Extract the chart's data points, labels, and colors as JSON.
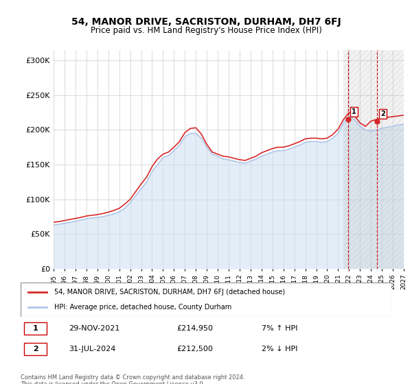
{
  "title": "54, MANOR DRIVE, SACRISTON, DURHAM, DH7 6FJ",
  "subtitle": "Price paid vs. HM Land Registry's House Price Index (HPI)",
  "ylabel_ticks": [
    "£0",
    "£50K",
    "£100K",
    "£150K",
    "£200K",
    "£250K",
    "£300K"
  ],
  "ytick_values": [
    0,
    50000,
    100000,
    150000,
    200000,
    250000,
    300000
  ],
  "ylim": [
    0,
    315000
  ],
  "hpi_color": "#aec6e8",
  "price_color": "#d62728",
  "hpi_fill_color": "#c9ddf0",
  "legend1": "54, MANOR DRIVE, SACRISTON, DURHAM, DH7 6FJ (detached house)",
  "legend2": "HPI: Average price, detached house, County Durham",
  "sale1_label": "1",
  "sale1_date": "29-NOV-2021",
  "sale1_price": "£214,950",
  "sale1_change": "7% ↑ HPI",
  "sale2_label": "2",
  "sale2_date": "31-JUL-2024",
  "sale2_price": "£212,500",
  "sale2_change": "2% ↓ HPI",
  "footer": "Contains HM Land Registry data © Crown copyright and database right 2024.\nThis data is licensed under the Open Government Licence v3.0.",
  "background_color": "#ffffff",
  "grid_color": "#cccccc",
  "hpi_years": [
    1995,
    1995.5,
    1996,
    1996.5,
    1997,
    1997.5,
    1998,
    1998.5,
    1999,
    1999.5,
    2000,
    2000.5,
    2001,
    2001.5,
    2002,
    2002.5,
    2003,
    2003.5,
    2004,
    2004.5,
    2005,
    2005.5,
    2006,
    2006.5,
    2007,
    2007.5,
    2008,
    2008.5,
    2009,
    2009.5,
    2010,
    2010.5,
    2011,
    2011.5,
    2012,
    2012.5,
    2013,
    2013.5,
    2014,
    2014.5,
    2015,
    2015.5,
    2016,
    2016.5,
    2017,
    2017.5,
    2018,
    2018.5,
    2019,
    2019.5,
    2020,
    2020.5,
    2021,
    2021.5,
    2022,
    2022.5,
    2023,
    2023.5,
    2024,
    2024.5,
    2025,
    2025.5,
    2026,
    2026.5,
    2027
  ],
  "hpi_values": [
    63000,
    64000,
    65500,
    67000,
    68500,
    70000,
    72000,
    73000,
    74000,
    75000,
    77000,
    79000,
    82000,
    87000,
    95000,
    105000,
    115000,
    125000,
    140000,
    150000,
    160000,
    163000,
    170000,
    178000,
    190000,
    195000,
    195000,
    188000,
    175000,
    165000,
    162000,
    158000,
    157000,
    155000,
    153000,
    152000,
    155000,
    158000,
    162000,
    165000,
    168000,
    170000,
    170000,
    172000,
    175000,
    178000,
    182000,
    183000,
    183000,
    182000,
    183000,
    188000,
    195000,
    210000,
    220000,
    215000,
    205000,
    200000,
    198000,
    200000,
    202000,
    204000,
    205000,
    207000,
    208000
  ],
  "price_years": [
    1995,
    1995.5,
    1996,
    1996.5,
    1997,
    1997.5,
    1998,
    1998.5,
    1999,
    1999.5,
    2000,
    2000.5,
    2001,
    2001.5,
    2002,
    2002.5,
    2003,
    2003.5,
    2004,
    2004.5,
    2005,
    2005.5,
    2006,
    2006.5,
    2007,
    2007.5,
    2008,
    2008.5,
    2009,
    2009.5,
    2010,
    2010.5,
    2011,
    2011.5,
    2012,
    2012.5,
    2013,
    2013.5,
    2014,
    2014.5,
    2015,
    2015.5,
    2016,
    2016.5,
    2017,
    2017.5,
    2018,
    2018.5,
    2019,
    2019.5,
    2020,
    2020.5,
    2021,
    2021.5,
    2022,
    2022.5,
    2023,
    2023.5,
    2024,
    2024.5,
    2025,
    2025.5,
    2026,
    2026.5,
    2027
  ],
  "price_values": [
    67000,
    68000,
    69500,
    71000,
    72500,
    74000,
    76000,
    77000,
    78000,
    79500,
    81500,
    84000,
    87000,
    93000,
    100000,
    111000,
    122000,
    132000,
    147000,
    158000,
    165000,
    168000,
    175000,
    183000,
    196000,
    202000,
    203000,
    194000,
    179000,
    168000,
    165000,
    162000,
    161000,
    159000,
    157000,
    156000,
    159000,
    162000,
    167000,
    170000,
    173000,
    175000,
    175000,
    177000,
    180000,
    183000,
    187000,
    188000,
    188000,
    187000,
    188000,
    193000,
    201000,
    214950,
    225000,
    220000,
    210000,
    205000,
    212500,
    215000,
    217000,
    218000,
    219000,
    220000,
    221000
  ],
  "sale_points": [
    {
      "year": 2021.92,
      "price": 214950,
      "label": "1"
    },
    {
      "year": 2024.58,
      "price": 212500,
      "label": "2"
    }
  ],
  "hatched_start": 2021.5,
  "xmin": 1995,
  "xmax": 2027
}
